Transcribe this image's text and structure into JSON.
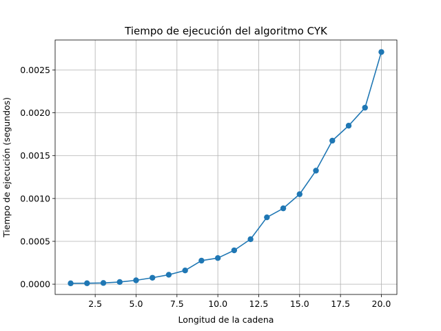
{
  "chart_data": {
    "type": "line",
    "title": "Tiempo de ejecución del algoritmo CYK",
    "xlabel": "Longitud de la cadena",
    "ylabel": "Tiempo de ejecución (segundos)",
    "xlim": [
      0.05,
      20.95
    ],
    "ylim": [
      -0.00012,
      0.00285
    ],
    "xticks": [
      2.5,
      5.0,
      7.5,
      10.0,
      12.5,
      15.0,
      17.5,
      20.0
    ],
    "xtick_labels": [
      "2.5",
      "5.0",
      "7.5",
      "10.0",
      "12.5",
      "15.0",
      "17.5",
      "20.0"
    ],
    "yticks": [
      0.0,
      0.0005,
      0.001,
      0.0015,
      0.002,
      0.0025
    ],
    "ytick_labels": [
      "0.0000",
      "0.0005",
      "0.0010",
      "0.0015",
      "0.0020",
      "0.0025"
    ],
    "grid": true,
    "color": "#1f77b4",
    "marker": "circle",
    "x": [
      1,
      2,
      3,
      4,
      5,
      6,
      7,
      8,
      9,
      10,
      11,
      12,
      13,
      14,
      15,
      16,
      17,
      18,
      19,
      20
    ],
    "y": [
      1e-05,
      1.1e-05,
      1.4e-05,
      2.5e-05,
      4.5e-05,
      7.5e-05,
      0.00011,
      0.00016,
      0.000275,
      0.000305,
      0.000395,
      0.000525,
      0.00078,
      0.000885,
      0.00105,
      0.001325,
      0.001675,
      0.00185,
      0.00206,
      0.00271
    ]
  }
}
